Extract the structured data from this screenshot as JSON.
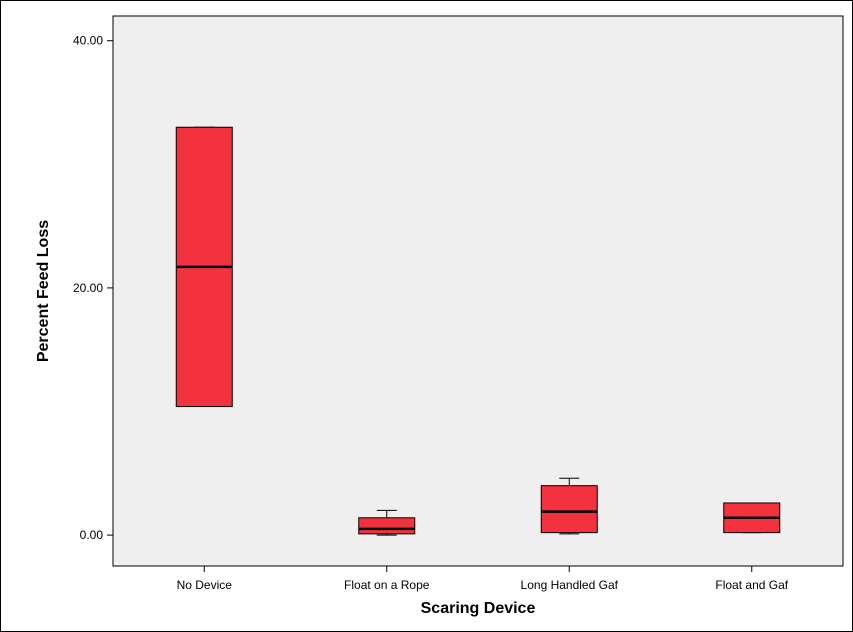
{
  "chart_data": {
    "type": "boxplot",
    "title": "",
    "xlabel": "Scaring Device",
    "ylabel": "Percent Feed Loss",
    "ylim": [
      -2.5,
      42
    ],
    "yticks": [
      0,
      20,
      40
    ],
    "ytick_labels": [
      "0.00",
      "20.00",
      "40.00"
    ],
    "categories": [
      "No Device",
      "Float on a Rope",
      "Long Handled Gaf",
      "Float and Gaf"
    ],
    "boxes": [
      {
        "category": "No Device",
        "whisker_low": 10.4,
        "q1": 10.4,
        "median": 21.7,
        "q3": 33.0,
        "whisker_high": 33.0
      },
      {
        "category": "Float on a Rope",
        "whisker_low": 0.0,
        "q1": 0.1,
        "median": 0.5,
        "q3": 1.4,
        "whisker_high": 2.0
      },
      {
        "category": "Long Handled Gaf",
        "whisker_low": 0.1,
        "q1": 0.2,
        "median": 1.9,
        "q3": 4.0,
        "whisker_high": 4.6
      },
      {
        "category": "Float and Gaf",
        "whisker_low": 0.2,
        "q1": 0.2,
        "median": 1.4,
        "q3": 2.6,
        "whisker_high": 2.6
      }
    ],
    "grid": false,
    "plot_background": "#efefef",
    "box_color": "#f2333f",
    "legend": "none"
  }
}
